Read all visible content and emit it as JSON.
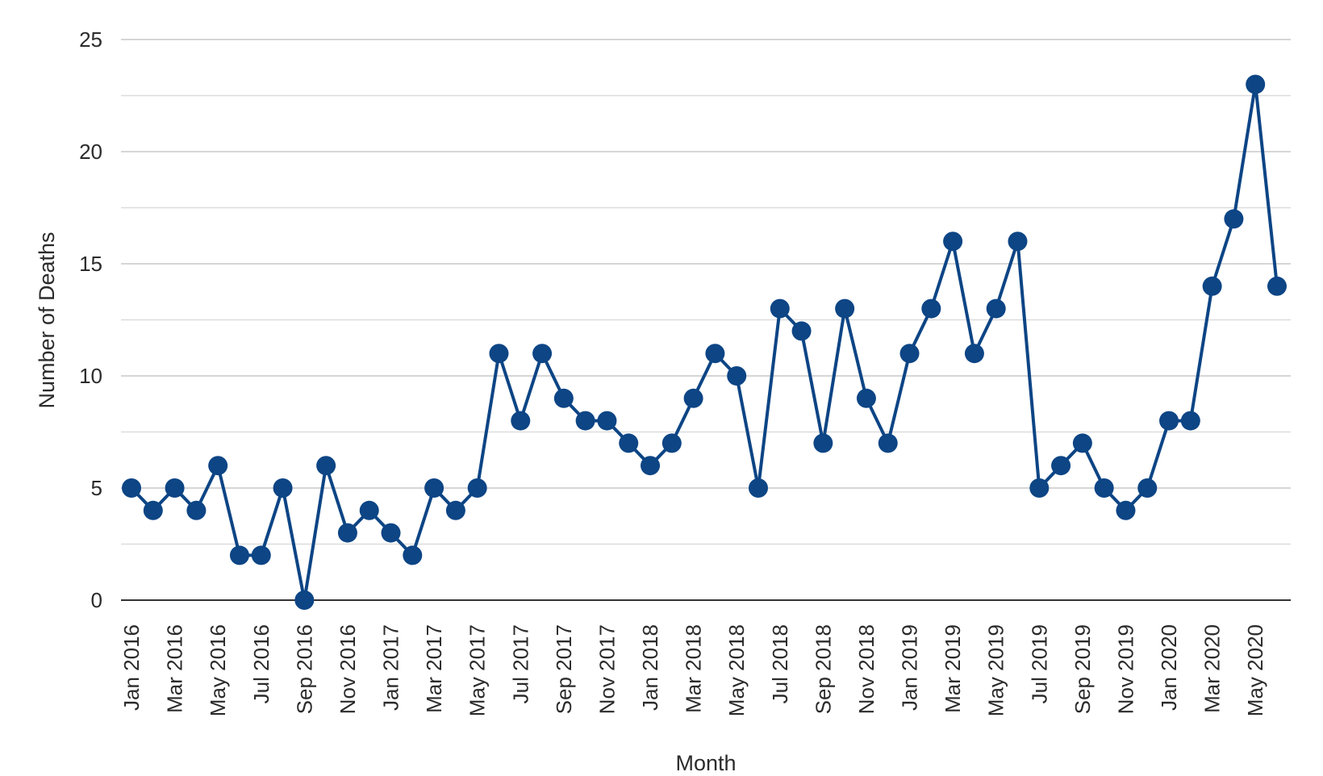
{
  "chart_data": {
    "type": "line",
    "title": "",
    "xlabel": "Month",
    "ylabel": "Number of Deaths",
    "ylim": [
      0,
      25
    ],
    "yticks": [
      0,
      5,
      10,
      15,
      20,
      25
    ],
    "grid": true,
    "legend": "none",
    "color": "#0d4585",
    "x": [
      "Jan 2016",
      "Feb 2016",
      "Mar 2016",
      "Apr 2016",
      "May 2016",
      "Jun 2016",
      "Jul 2016",
      "Aug 2016",
      "Sep 2016",
      "Oct 2016",
      "Nov 2016",
      "Dec 2016",
      "Jan 2017",
      "Feb 2017",
      "Mar 2017",
      "Apr 2017",
      "May 2017",
      "Jun 2017",
      "Jul 2017",
      "Aug 2017",
      "Sep 2017",
      "Oct 2017",
      "Nov 2017",
      "Dec 2017",
      "Jan 2018",
      "Feb 2018",
      "Mar 2018",
      "Apr 2018",
      "May 2018",
      "Jun 2018",
      "Jul 2018",
      "Aug 2018",
      "Sep 2018",
      "Oct 2018",
      "Nov 2018",
      "Dec 2018",
      "Jan 2019",
      "Feb 2019",
      "Mar 2019",
      "Apr 2019",
      "May 2019",
      "Jun 2019",
      "Jul 2019",
      "Aug 2019",
      "Sep 2019",
      "Oct 2019",
      "Nov 2019",
      "Dec 2019",
      "Jan 2020",
      "Feb 2020",
      "Mar 2020",
      "Apr 2020",
      "May 2020",
      "Jun 2020"
    ],
    "xtick_labels": [
      "Jan 2016",
      "Mar 2016",
      "May 2016",
      "Jul 2016",
      "Sep 2016",
      "Nov 2016",
      "Jan 2017",
      "Mar 2017",
      "May 2017",
      "Jul 2017",
      "Sep 2017",
      "Nov 2017",
      "Jan 2018",
      "Mar 2018",
      "May 2018",
      "Jul 2018",
      "Sep 2018",
      "Nov 2018",
      "Jan 2019",
      "Mar 2019",
      "May 2019",
      "Jul 2019",
      "Sep 2019",
      "Nov 2019",
      "Jan 2020",
      "Mar 2020",
      "May 2020"
    ],
    "series": [
      {
        "values": [
          5,
          4,
          5,
          4,
          6,
          2,
          2,
          5,
          0,
          6,
          3,
          4,
          3,
          2,
          5,
          4,
          5,
          11,
          8,
          11,
          9,
          8,
          8,
          7,
          6,
          7,
          9,
          11,
          10,
          5,
          13,
          12,
          7,
          13,
          9,
          7,
          11,
          13,
          16,
          11,
          13,
          16,
          5,
          6,
          7,
          5,
          4,
          5,
          8,
          8,
          14,
          17,
          23,
          14
        ]
      }
    ]
  }
}
